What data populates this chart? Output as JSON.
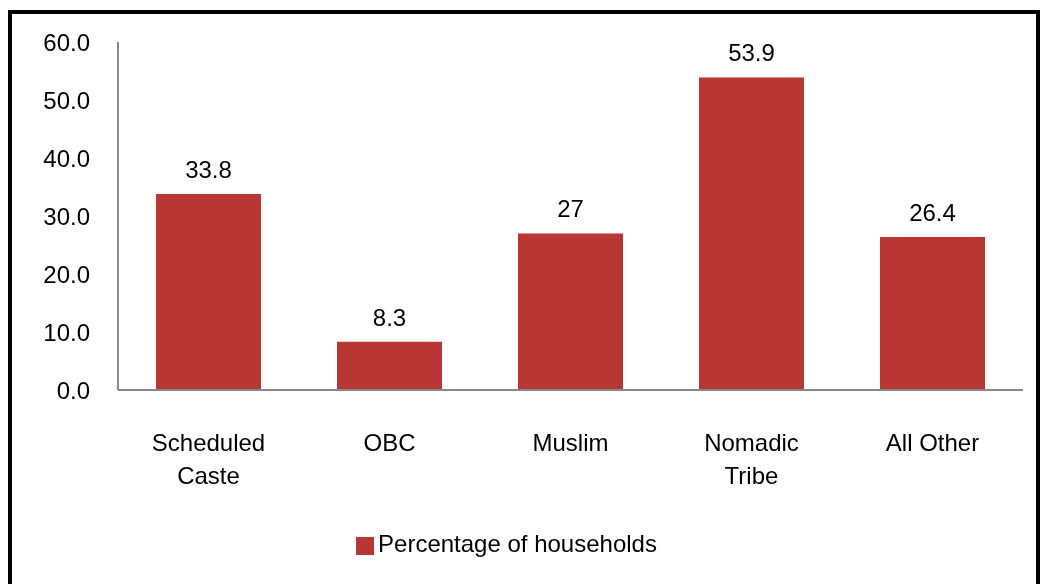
{
  "chart_data": {
    "type": "bar",
    "categories": [
      "Scheduled Caste",
      "OBC",
      "Muslim",
      "Nomadic Tribe",
      "All Other"
    ],
    "series": [
      {
        "name": "Percentage of households",
        "color": "#b83633",
        "values": [
          33.8,
          8.3,
          27,
          53.9,
          26.4
        ]
      }
    ],
    "ylim": [
      0,
      60
    ],
    "yticks": [
      {
        "value": 0,
        "label": "0.0"
      },
      {
        "value": 10,
        "label": "10.0"
      },
      {
        "value": 20,
        "label": "20.0"
      },
      {
        "value": 30,
        "label": "30.0"
      },
      {
        "value": 40,
        "label": "40.0"
      },
      {
        "value": 50,
        "label": "50.0"
      },
      {
        "value": 60,
        "label": "60.0"
      }
    ],
    "data_labels": true,
    "legend": "bottom"
  }
}
